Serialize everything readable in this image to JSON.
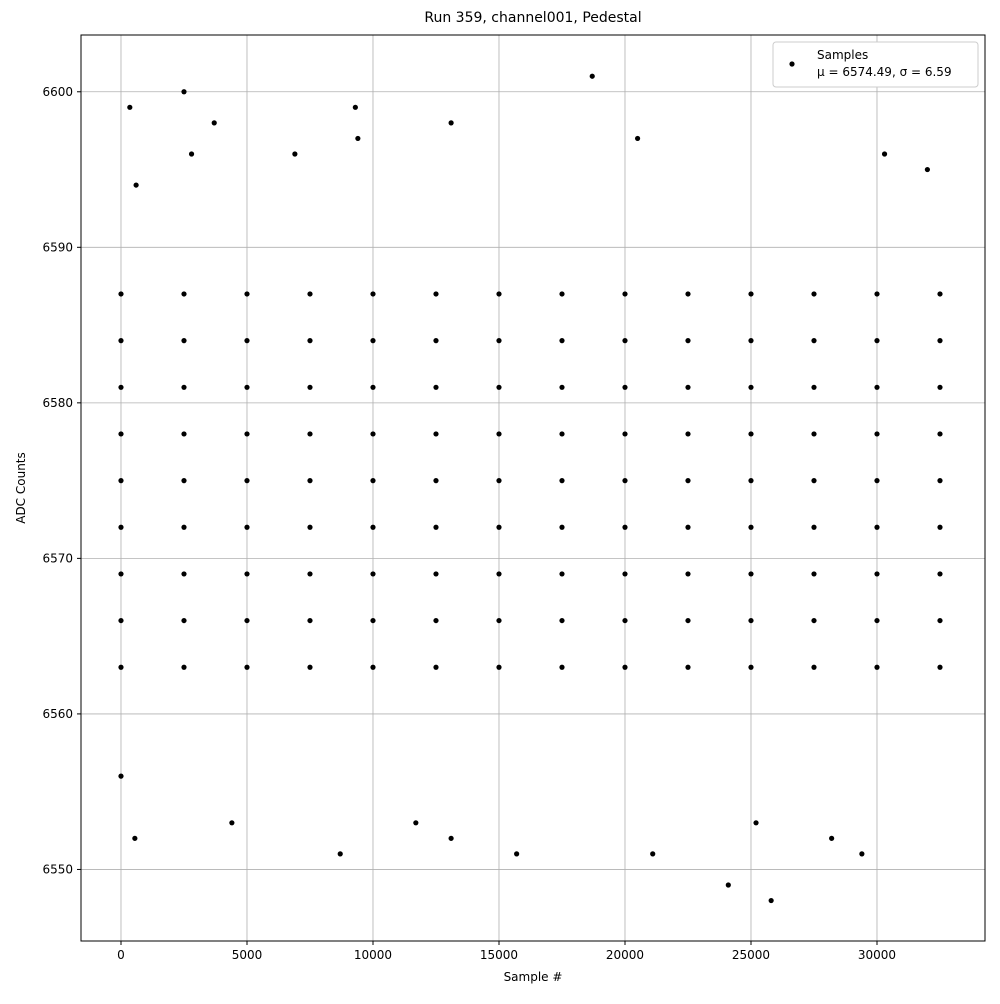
{
  "chart_data": {
    "type": "scatter",
    "title": "Run 359, channel001, Pedestal",
    "x_label": "Sample #",
    "y_label": "ADC Counts",
    "xlim": [
      -1587,
      34286
    ],
    "ylim": [
      6545.4,
      6603.65
    ],
    "xticks": [
      0,
      5000,
      10000,
      15000,
      20000,
      25000,
      30000
    ],
    "yticks": [
      6550,
      6560,
      6570,
      6580,
      6590,
      6600
    ],
    "grid": true,
    "legend_position": "upper right",
    "series": [
      {
        "name": "Samples",
        "color": "#000000",
        "annotation": "μ = 6574.49, σ = 6.59",
        "x": [
          0,
          0,
          0,
          0,
          0,
          0,
          0,
          0,
          0,
          2500,
          2500,
          2500,
          2500,
          2500,
          2500,
          2500,
          2500,
          2500,
          5000,
          5000,
          5000,
          5000,
          5000,
          5000,
          5000,
          5000,
          5000,
          7500,
          7500,
          7500,
          7500,
          7500,
          7500,
          7500,
          7500,
          7500,
          10000,
          10000,
          10000,
          10000,
          10000,
          10000,
          10000,
          10000,
          10000,
          12500,
          12500,
          12500,
          12500,
          12500,
          12500,
          12500,
          12500,
          12500,
          15000,
          15000,
          15000,
          15000,
          15000,
          15000,
          15000,
          15000,
          15000,
          17500,
          17500,
          17500,
          17500,
          17500,
          17500,
          17500,
          17500,
          17500,
          20000,
          20000,
          20000,
          20000,
          20000,
          20000,
          20000,
          20000,
          20000,
          22500,
          22500,
          22500,
          22500,
          22500,
          22500,
          22500,
          22500,
          22500,
          25000,
          25000,
          25000,
          25000,
          25000,
          25000,
          25000,
          25000,
          25000,
          27500,
          27500,
          27500,
          27500,
          27500,
          27500,
          27500,
          27500,
          27500,
          30000,
          30000,
          30000,
          30000,
          30000,
          30000,
          30000,
          30000,
          30000,
          32500,
          32500,
          32500,
          32500,
          32500,
          32500,
          32500,
          32500,
          32500,
          0,
          350,
          2500,
          3700,
          13100,
          9300,
          18700,
          9400,
          20500,
          8700,
          15700,
          21100,
          24100,
          25800,
          29400,
          550,
          13100,
          28200,
          600,
          2800,
          6900,
          30300,
          32000,
          4400,
          11700,
          25200
        ],
        "values": [
          6563,
          6566,
          6569,
          6572,
          6575,
          6578,
          6581,
          6584,
          6587,
          6563,
          6566,
          6569,
          6572,
          6575,
          6578,
          6581,
          6584,
          6587,
          6563,
          6566,
          6569,
          6572,
          6575,
          6578,
          6581,
          6584,
          6587,
          6563,
          6566,
          6569,
          6572,
          6575,
          6578,
          6581,
          6584,
          6587,
          6563,
          6566,
          6569,
          6572,
          6575,
          6578,
          6581,
          6584,
          6587,
          6563,
          6566,
          6569,
          6572,
          6575,
          6578,
          6581,
          6584,
          6587,
          6563,
          6566,
          6569,
          6572,
          6575,
          6578,
          6581,
          6584,
          6587,
          6563,
          6566,
          6569,
          6572,
          6575,
          6578,
          6581,
          6584,
          6587,
          6563,
          6566,
          6569,
          6572,
          6575,
          6578,
          6581,
          6584,
          6587,
          6563,
          6566,
          6569,
          6572,
          6575,
          6578,
          6581,
          6584,
          6587,
          6563,
          6566,
          6569,
          6572,
          6575,
          6578,
          6581,
          6584,
          6587,
          6563,
          6566,
          6569,
          6572,
          6575,
          6578,
          6581,
          6584,
          6587,
          6563,
          6566,
          6569,
          6572,
          6575,
          6578,
          6581,
          6584,
          6587,
          6563,
          6566,
          6569,
          6572,
          6575,
          6578,
          6581,
          6584,
          6587,
          6556,
          6599,
          6600,
          6598,
          6598,
          6599,
          6601,
          6597,
          6597,
          6551,
          6551,
          6551,
          6549,
          6548,
          6551,
          6552,
          6552,
          6552,
          6594,
          6596,
          6596,
          6596,
          6595,
          6553,
          6553,
          6553
        ]
      }
    ]
  }
}
